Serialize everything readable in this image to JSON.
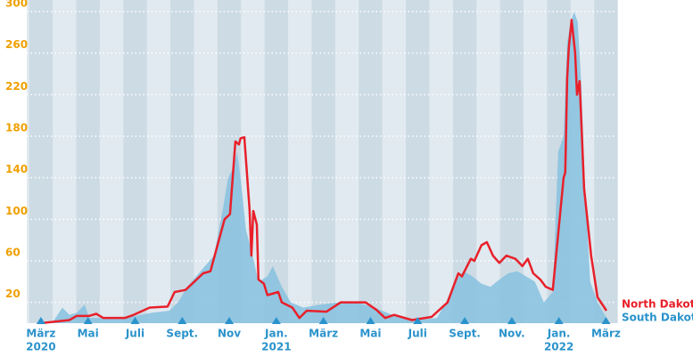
{
  "chart_data": {
    "type": "line",
    "ylim": [
      0,
      300
    ],
    "yticks": [
      20,
      60,
      100,
      140,
      180,
      220,
      260,
      300
    ],
    "grid": true,
    "xlim": [
      -0.45,
      24.4
    ],
    "xticks": [
      {
        "value": 0,
        "label": "März"
      },
      {
        "value": 2,
        "label": "Mai"
      },
      {
        "value": 4,
        "label": "Juli"
      },
      {
        "value": 6,
        "label": "Sept."
      },
      {
        "value": 8,
        "label": "Nov"
      },
      {
        "value": 10,
        "label": "Jan."
      },
      {
        "value": 12,
        "label": "März"
      },
      {
        "value": 14,
        "label": "Mai"
      },
      {
        "value": 16,
        "label": "Juli"
      },
      {
        "value": 18,
        "label": "Sept."
      },
      {
        "value": 20,
        "label": "Nov."
      },
      {
        "value": 22,
        "label": "Jan."
      },
      {
        "value": 24,
        "label": "März"
      }
    ],
    "xtick_years": [
      {
        "value": 0,
        "label": "2020"
      },
      {
        "value": 10,
        "label": "2021"
      },
      {
        "value": 22,
        "label": "2022"
      }
    ],
    "series": [
      {
        "name": "South Dakota",
        "color": "#86c1df",
        "style": "area",
        "x": [
          0,
          0.53,
          0.91,
          1.21,
          1.52,
          1.86,
          2.05,
          3.56,
          4.7,
          5.45,
          5.83,
          6.21,
          6.59,
          6.97,
          7.35,
          7.73,
          7.95,
          8.18,
          8.33,
          8.48,
          8.71,
          8.94,
          9.24,
          9.62,
          9.85,
          10.23,
          10.61,
          11.14,
          11.89,
          12.65,
          13.41,
          14.17,
          14.92,
          16.06,
          16.82,
          17.2,
          17.58,
          17.95,
          18.33,
          18.71,
          19.09,
          19.47,
          19.85,
          20.23,
          20.61,
          20.98,
          21.36,
          21.74,
          21.97,
          22.2,
          22.35,
          22.5,
          22.65,
          22.8,
          22.95,
          23.11,
          23.33,
          23.64,
          24.02,
          24.17
        ],
        "values": [
          0,
          2,
          15,
          8,
          10,
          18,
          5,
          5,
          10,
          12,
          20,
          35,
          45,
          55,
          65,
          110,
          140,
          150,
          165,
          140,
          90,
          70,
          40,
          45,
          55,
          35,
          20,
          15,
          18,
          20,
          20,
          15,
          8,
          3,
          5,
          20,
          40,
          50,
          45,
          38,
          35,
          42,
          48,
          50,
          45,
          40,
          20,
          30,
          165,
          180,
          270,
          290,
          300,
          290,
          230,
          130,
          40,
          20,
          5,
          0
        ]
      },
      {
        "name": "North Dakota",
        "color": "#e8202a",
        "style": "line",
        "x": [
          0,
          1.21,
          1.52,
          2.05,
          2.35,
          2.65,
          3.56,
          3.94,
          4.62,
          5.38,
          5.68,
          6.14,
          6.52,
          6.89,
          7.2,
          7.5,
          7.8,
          8.03,
          8.26,
          8.41,
          8.48,
          8.64,
          8.86,
          8.94,
          9.02,
          9.17,
          9.24,
          9.47,
          9.62,
          10.08,
          10.23,
          10.68,
          10.98,
          11.29,
          12.12,
          12.73,
          13.79,
          14.24,
          14.62,
          15.0,
          15.76,
          16.59,
          17.27,
          17.73,
          17.88,
          18.26,
          18.41,
          18.71,
          18.94,
          19.2,
          19.47,
          19.77,
          20.15,
          20.45,
          20.68,
          20.91,
          21.21,
          21.44,
          21.74,
          21.86,
          22.2,
          22.27,
          22.35,
          22.42,
          22.54,
          22.69,
          22.77,
          22.88,
          23.07,
          23.37,
          23.64,
          24.02
        ],
        "values": [
          0,
          3,
          7,
          7,
          9,
          5,
          5,
          8,
          15,
          16,
          30,
          32,
          40,
          48,
          50,
          75,
          100,
          105,
          175,
          172,
          178,
          179,
          110,
          65,
          108,
          95,
          42,
          38,
          27,
          30,
          20,
          15,
          5,
          12,
          11,
          20,
          20,
          13,
          5,
          8,
          3,
          6,
          20,
          48,
          45,
          62,
          60,
          75,
          78,
          65,
          58,
          65,
          62,
          55,
          62,
          48,
          42,
          35,
          32,
          60,
          140,
          145,
          235,
          265,
          292,
          260,
          220,
          233,
          130,
          65,
          25,
          12
        ]
      }
    ]
  }
}
